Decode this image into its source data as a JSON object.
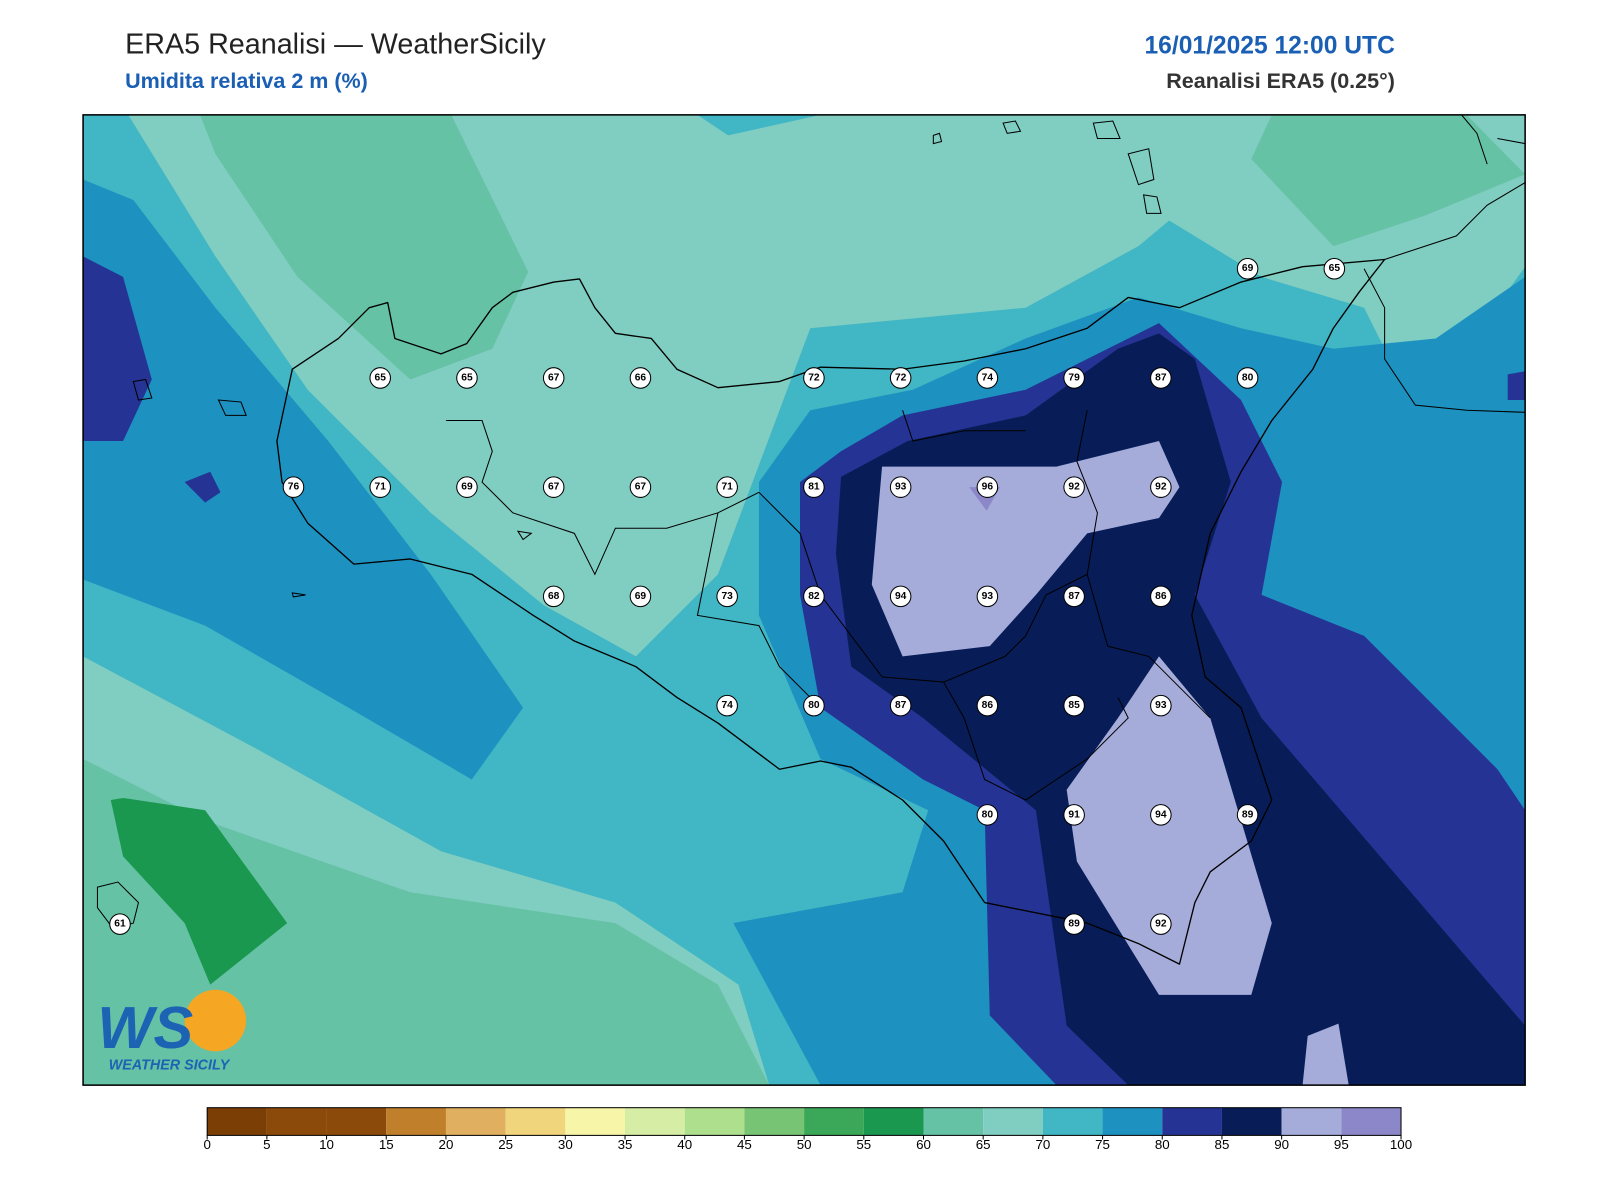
{
  "header": {
    "title": "ERA5 Reanalisi — WeatherSicily",
    "subtitle": "Umidita relativa 2 m (%)",
    "datetime": "16/01/2025 12:00 UTC",
    "source": "Reanalisi ERA5 (0.25°)"
  },
  "stations": {
    "rows": [
      [
        null,
        null,
        null,
        null,
        null,
        null,
        null,
        null,
        null,
        null,
        null,
        null,
        null,
        69,
        65
      ],
      [
        null,
        null,
        null,
        65,
        65,
        67,
        66,
        null,
        72,
        72,
        74,
        79,
        87,
        80,
        null
      ],
      [
        null,
        null,
        76,
        71,
        69,
        67,
        67,
        71,
        81,
        93,
        96,
        92,
        92,
        null,
        null
      ],
      [
        null,
        null,
        null,
        null,
        null,
        68,
        69,
        73,
        82,
        94,
        93,
        87,
        86,
        null,
        null
      ],
      [
        null,
        null,
        null,
        null,
        null,
        null,
        null,
        74,
        80,
        87,
        86,
        85,
        93,
        null,
        null
      ],
      [
        null,
        null,
        null,
        null,
        null,
        null,
        null,
        null,
        null,
        null,
        80,
        91,
        94,
        89,
        null
      ],
      [
        61,
        null,
        null,
        null,
        null,
        null,
        null,
        null,
        null,
        null,
        null,
        89,
        92,
        null,
        null
      ]
    ]
  },
  "colorbar": {
    "ticks": [
      0,
      5,
      10,
      15,
      20,
      25,
      30,
      35,
      40,
      45,
      50,
      55,
      60,
      65,
      70,
      75,
      80,
      85,
      90,
      95,
      100
    ],
    "colors": [
      "#7b3f06",
      "#8c4a0a",
      "#8c4a0a",
      "#c07f2b",
      "#e0b060",
      "#f0d57c",
      "#f7f5a8",
      "#d6eda6",
      "#addf8d",
      "#78c475",
      "#3aa858",
      "#1a9850",
      "#66c2a5",
      "#80cdc1",
      "#41b6c4",
      "#1d91c0",
      "#253494",
      "#081d58",
      "#a5acd9",
      "#8c87c8"
    ]
  },
  "logo": {
    "mark": "WS",
    "name": "WEATHER SICILY"
  }
}
